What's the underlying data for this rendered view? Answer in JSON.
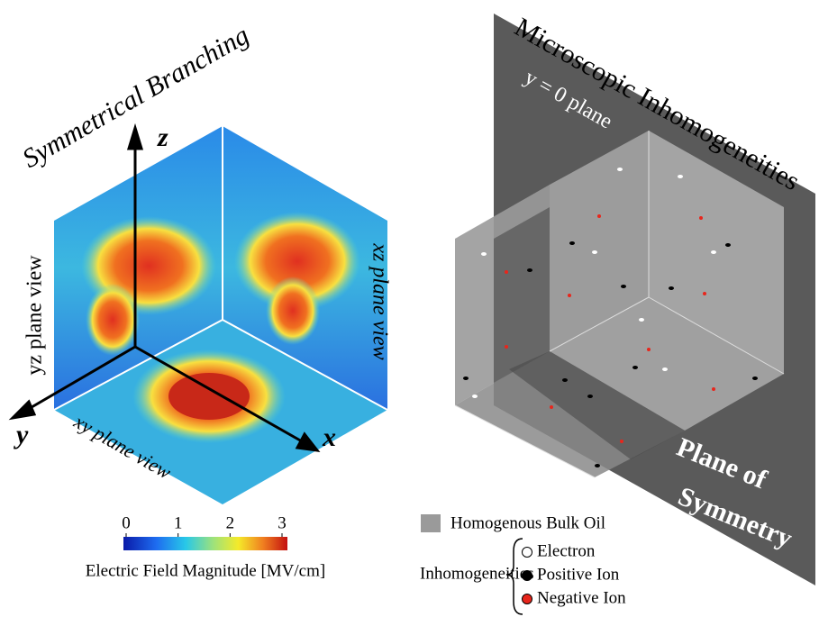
{
  "left_panel": {
    "title": "Symmetrical Branching",
    "axes": {
      "z": "z",
      "y": "y",
      "x": "x"
    },
    "planes": {
      "yz": "yz plane view",
      "xz": "xz plane view",
      "xy": "xy plane view"
    },
    "colorbar": {
      "label": "Electric Field Magnitude [MV/cm]",
      "ticks": [
        0,
        1,
        2,
        3
      ]
    }
  },
  "right_panel": {
    "title": "Microscopic Inhomogeneities",
    "plane_label": "y = 0 plane",
    "symmetry_label": [
      "Plane of",
      "Symmetry"
    ],
    "legend": {
      "bulk": "Homogenous Bulk Oil",
      "group": "Inhomogeneities",
      "items": [
        {
          "label": "Electron",
          "color": "#ffffff"
        },
        {
          "label": "Positive Ion",
          "color": "#000000"
        },
        {
          "label": "Negative Ion",
          "color": "#e8261c"
        }
      ]
    }
  }
}
